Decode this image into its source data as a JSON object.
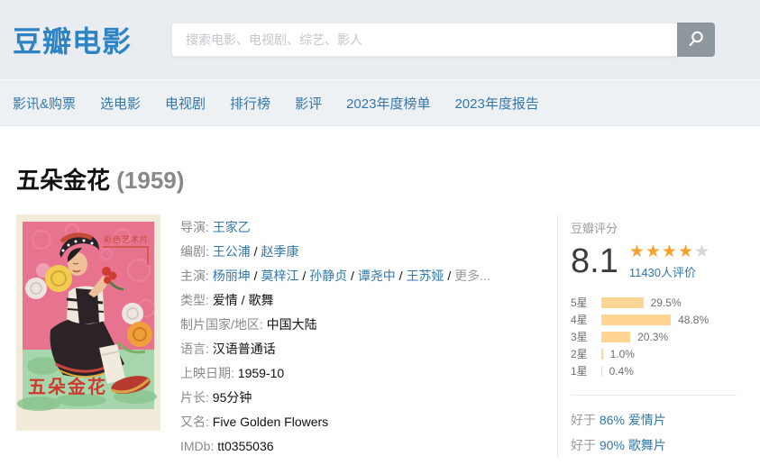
{
  "theme": {
    "accent": "#3377aa",
    "logo": "#2d83c4",
    "star": "#f7a32b",
    "bar": "#ffd593",
    "header_bg": "#e9edf2",
    "nav_bg": "#eef1f4"
  },
  "header": {
    "logo": "豆瓣电影",
    "search_placeholder": "搜索电影、电视剧、综艺、影人",
    "search_icon": "magnifier"
  },
  "nav": {
    "items": [
      "影讯&购票",
      "选电影",
      "电视剧",
      "排行榜",
      "影评",
      "2023年度榜单",
      "2023年度报告"
    ]
  },
  "movie": {
    "title": "五朵金花",
    "year": "(1959)",
    "poster": {
      "title_text": "五朵金花",
      "corner_text": "彩色艺术片"
    },
    "details": [
      {
        "label": "导演:",
        "parts": [
          {
            "text": "王家乙",
            "link": true
          }
        ]
      },
      {
        "label": "编剧:",
        "parts": [
          {
            "text": "王公浦",
            "link": true
          },
          {
            "text": "赵季康",
            "link": true
          }
        ]
      },
      {
        "label": "主演:",
        "parts": [
          {
            "text": "杨丽坤",
            "link": true
          },
          {
            "text": "莫梓江",
            "link": true
          },
          {
            "text": "孙静贞",
            "link": true
          },
          {
            "text": "谭尧中",
            "link": true
          },
          {
            "text": "王苏娅",
            "link": true
          },
          {
            "text": "更多...",
            "muted": true
          }
        ]
      },
      {
        "label": "类型:",
        "parts": [
          {
            "text": "爱情"
          },
          {
            "text": "歌舞"
          }
        ]
      },
      {
        "label": "制片国家/地区:",
        "parts": [
          {
            "text": "中国大陆"
          }
        ]
      },
      {
        "label": "语言:",
        "parts": [
          {
            "text": "汉语普通话"
          }
        ]
      },
      {
        "label": "上映日期:",
        "parts": [
          {
            "text": "1959-10"
          }
        ]
      },
      {
        "label": "片长:",
        "parts": [
          {
            "text": "95分钟"
          }
        ]
      },
      {
        "label": "又名:",
        "parts": [
          {
            "text": "Five Golden Flowers"
          }
        ]
      },
      {
        "label": "IMDb:",
        "parts": [
          {
            "text": "tt0355036"
          }
        ]
      }
    ]
  },
  "rating": {
    "label": "豆瓣评分",
    "score": "8.1",
    "stars_full": 4,
    "stars_total": 5,
    "votes": "11430人评价",
    "distribution": [
      {
        "label": "5星",
        "percent": 29.5
      },
      {
        "label": "4星",
        "percent": 48.8
      },
      {
        "label": "3星",
        "percent": 20.3
      },
      {
        "label": "2星",
        "percent": 1.0
      },
      {
        "label": "1星",
        "percent": 0.4
      }
    ]
  },
  "comparisons": [
    {
      "prefix": "好于",
      "link": "86% 爱情片"
    },
    {
      "prefix": "好于",
      "link": "90% 歌舞片"
    }
  ]
}
